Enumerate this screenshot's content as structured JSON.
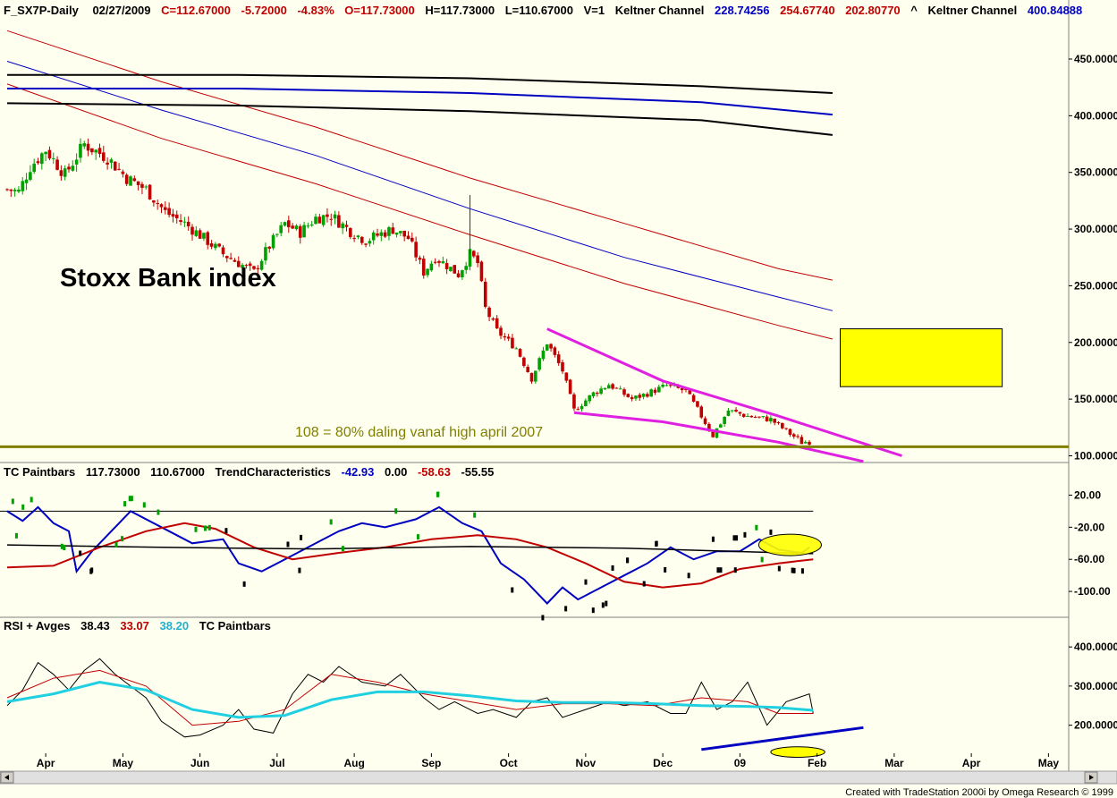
{
  "header": {
    "main": {
      "symbol": "F_SX7P-Daily",
      "date": "02/27/2009",
      "close": "C=112.67000",
      "change": "-5.72000",
      "change_pct": "-4.83%",
      "open": "O=117.73000",
      "high": "H=117.73000",
      "low": "L=110.67000",
      "volume": "V=1",
      "kc1_label": "Keltner Channel",
      "kc1_v1": "228.74256",
      "kc1_v2": "254.67740",
      "kc1_v3": "202.80770",
      "caret": "^",
      "kc2_label": "Keltner Channel",
      "kc2_v1": "400.84888"
    },
    "tc": {
      "label1": "TC Paintbars",
      "v1": "117.73000",
      "v2": "110.67000",
      "label2": "TrendCharacteristics",
      "t1": "-42.93",
      "t2": "0.00",
      "t3": "-58.63",
      "t4": "-55.55"
    },
    "rsi": {
      "label": "RSI + Avges",
      "v1": "38.43",
      "v2": "33.07",
      "v3": "38.20",
      "label2": "TC Paintbars"
    }
  },
  "annotations": {
    "title": "Stoxx Bank index",
    "support_note": "108 = 80% daling vanaf high april 2007"
  },
  "footer": "Created with TradeStation 2000i by Omega Research © 1999",
  "colors": {
    "background": "#fffff0",
    "up_candle": "#00a000",
    "down_candle": "#c00000",
    "keltner_red": "#c00000",
    "keltner_blue": "#0000c0",
    "keltner_black": "#000000",
    "wedge": "#e020e0",
    "support_line": "#808000",
    "highlight": "#ffff00",
    "trend_blue": "#0000c0",
    "trend_red": "#c00000",
    "rsi_cyan": "#20d0e0",
    "rsi_red": "#c00000"
  },
  "chart_data": [
    {
      "type": "candlestick",
      "name": "price",
      "x_ticks": [
        "Apr",
        "May",
        "Jun",
        "Jul",
        "Aug",
        "Sep",
        "Oct",
        "Nov",
        "Dec",
        "09",
        "Feb",
        "Mar",
        "Apr",
        "May"
      ],
      "y_ticks": [
        "450.0000",
        "400.0000",
        "350.0000",
        "300.0000",
        "250.0000",
        "200.0000",
        "150.0000",
        "100.0000"
      ],
      "ylim": [
        98,
        480
      ],
      "x_months": [
        0,
        13.8
      ],
      "close_path": [
        [
          0,
          335
        ],
        [
          0.15,
          333
        ],
        [
          0.3,
          355
        ],
        [
          0.5,
          370
        ],
        [
          0.75,
          348
        ],
        [
          1.0,
          375
        ],
        [
          1.12,
          370
        ],
        [
          1.3,
          363
        ],
        [
          1.55,
          345
        ],
        [
          1.8,
          335
        ],
        [
          2.05,
          315
        ],
        [
          2.3,
          305
        ],
        [
          2.55,
          292
        ],
        [
          2.8,
          278
        ],
        [
          3.05,
          268
        ],
        [
          3.2,
          262
        ],
        [
          3.35,
          280
        ],
        [
          3.6,
          305
        ],
        [
          3.8,
          297
        ],
        [
          4.0,
          310
        ],
        [
          4.2,
          312
        ],
        [
          4.45,
          298
        ],
        [
          4.65,
          290
        ],
        [
          4.85,
          296
        ],
        [
          5.0,
          300
        ],
        [
          5.2,
          292
        ],
        [
          5.4,
          262
        ],
        [
          5.55,
          275
        ],
        [
          5.7,
          268
        ],
        [
          5.85,
          260
        ],
        [
          6.0,
          278
        ],
        [
          6.1,
          270
        ],
        [
          6.2,
          230
        ],
        [
          6.35,
          210
        ],
        [
          6.6,
          195
        ],
        [
          6.8,
          168
        ],
        [
          7.0,
          200
        ],
        [
          7.2,
          175
        ],
        [
          7.35,
          140
        ],
        [
          7.6,
          155
        ],
        [
          7.8,
          163
        ],
        [
          8.1,
          150
        ],
        [
          8.3,
          155
        ],
        [
          8.55,
          162
        ],
        [
          8.8,
          157
        ],
        [
          9.0,
          135
        ],
        [
          9.15,
          118
        ],
        [
          9.35,
          140
        ],
        [
          9.6,
          135
        ],
        [
          9.9,
          132
        ],
        [
          10.1,
          122
        ],
        [
          10.3,
          112
        ],
        [
          10.42,
          113
        ]
      ],
      "spikes": [
        [
          6.0,
          330
        ]
      ],
      "keltner_channel_1": {
        "upper": [
          [
            0,
            475
          ],
          [
            2,
            430
          ],
          [
            4,
            390
          ],
          [
            6,
            345
          ],
          [
            8,
            305
          ],
          [
            10,
            265
          ],
          [
            10.7,
            255
          ]
        ],
        "middle": [
          [
            0,
            448
          ],
          [
            2,
            405
          ],
          [
            4,
            365
          ],
          [
            6,
            318
          ],
          [
            8,
            275
          ],
          [
            10,
            240
          ],
          [
            10.7,
            228
          ]
        ],
        "lower": [
          [
            0,
            428
          ],
          [
            2,
            380
          ],
          [
            4,
            340
          ],
          [
            6,
            295
          ],
          [
            8,
            252
          ],
          [
            10,
            215
          ],
          [
            10.7,
            203
          ]
        ]
      },
      "keltner_channel_2": {
        "upper": [
          [
            0,
            436
          ],
          [
            3,
            436
          ],
          [
            6,
            433
          ],
          [
            9,
            426
          ],
          [
            10.7,
            420
          ]
        ],
        "middle": [
          [
            0,
            424
          ],
          [
            3,
            424
          ],
          [
            6,
            420
          ],
          [
            9,
            412
          ],
          [
            10.7,
            401
          ]
        ],
        "lower": [
          [
            0,
            411
          ],
          [
            3,
            409
          ],
          [
            6,
            404
          ],
          [
            9,
            396
          ],
          [
            10.7,
            383
          ]
        ]
      },
      "wedge_upper": [
        [
          7.0,
          212
        ],
        [
          8.5,
          166
        ],
        [
          10.0,
          135
        ],
        [
          11.6,
          100
        ]
      ],
      "wedge_lower": [
        [
          7.35,
          138
        ],
        [
          8.5,
          130
        ],
        [
          10.0,
          112
        ],
        [
          11.1,
          95
        ]
      ],
      "support_level": 108,
      "highlight_box": {
        "x": [
          10.8,
          12.9
        ],
        "y": [
          161,
          212
        ]
      }
    },
    {
      "type": "line",
      "name": "trend_characteristics",
      "y_ticks": [
        "20.00",
        "-20.00",
        "-60.00",
        "-100.00"
      ],
      "ylim": [
        -130,
        35
      ],
      "reference_lines": [
        0,
        -42
      ],
      "series": [
        {
          "name": "trend",
          "color": "#0000c0",
          "values": [
            [
              0,
              0
            ],
            [
              0.2,
              -12
            ],
            [
              0.4,
              5
            ],
            [
              0.6,
              -15
            ],
            [
              0.8,
              -25
            ],
            [
              0.9,
              -75
            ],
            [
              1.1,
              -50
            ],
            [
              1.3,
              -30
            ],
            [
              1.6,
              0
            ],
            [
              2.0,
              -20
            ],
            [
              2.4,
              -40
            ],
            [
              2.8,
              -35
            ],
            [
              3.0,
              -65
            ],
            [
              3.3,
              -75
            ],
            [
              3.5,
              -65
            ],
            [
              3.8,
              -50
            ],
            [
              4.1,
              -35
            ],
            [
              4.3,
              -25
            ],
            [
              4.6,
              -15
            ],
            [
              4.9,
              -20
            ],
            [
              5.3,
              -10
            ],
            [
              5.6,
              5
            ],
            [
              5.9,
              -15
            ],
            [
              6.15,
              -25
            ],
            [
              6.4,
              -65
            ],
            [
              6.7,
              -85
            ],
            [
              7.0,
              -115
            ],
            [
              7.2,
              -95
            ],
            [
              7.4,
              -110
            ],
            [
              7.7,
              -95
            ],
            [
              8.0,
              -80
            ],
            [
              8.3,
              -65
            ],
            [
              8.6,
              -45
            ],
            [
              8.9,
              -60
            ],
            [
              9.2,
              -50
            ],
            [
              9.5,
              -50
            ],
            [
              9.75,
              -35
            ],
            [
              10.0,
              -48
            ],
            [
              10.3,
              -52
            ],
            [
              10.4,
              -45
            ]
          ]
        },
        {
          "name": "average",
          "color": "#c00000",
          "values": [
            [
              0,
              -70
            ],
            [
              0.6,
              -68
            ],
            [
              1.2,
              -45
            ],
            [
              1.8,
              -25
            ],
            [
              2.3,
              -15
            ],
            [
              2.7,
              -22
            ],
            [
              3.2,
              -45
            ],
            [
              3.7,
              -60
            ],
            [
              4.3,
              -52
            ],
            [
              4.9,
              -45
            ],
            [
              5.5,
              -35
            ],
            [
              6.1,
              -30
            ],
            [
              6.6,
              -35
            ],
            [
              7.0,
              -45
            ],
            [
              7.5,
              -65
            ],
            [
              8.0,
              -88
            ],
            [
              8.5,
              -95
            ],
            [
              9.0,
              -90
            ],
            [
              9.5,
              -72
            ],
            [
              10.0,
              -65
            ],
            [
              10.45,
              -60
            ]
          ]
        },
        {
          "name": "zero_line",
          "color": "#000000",
          "values": [
            [
              0,
              -42
            ],
            [
              2,
              -45
            ],
            [
              4,
              -47
            ],
            [
              6,
              -44
            ],
            [
              8,
              -46
            ],
            [
              10.45,
              -53
            ]
          ]
        }
      ]
    },
    {
      "type": "line",
      "name": "rsi",
      "y_ticks": [
        "400.0000",
        "300.0000",
        "200.0000"
      ],
      "ylim": [
        110,
        430
      ],
      "series": [
        {
          "name": "rsi",
          "color": "#000000",
          "values": [
            [
              0,
              250
            ],
            [
              0.2,
              290
            ],
            [
              0.4,
              360
            ],
            [
              0.6,
              330
            ],
            [
              0.8,
              290
            ],
            [
              1.0,
              340
            ],
            [
              1.2,
              370
            ],
            [
              1.4,
              330
            ],
            [
              1.6,
              300
            ],
            [
              1.8,
              270
            ],
            [
              2.0,
              210
            ],
            [
              2.3,
              170
            ],
            [
              2.5,
              175
            ],
            [
              2.8,
              200
            ],
            [
              3.0,
              240
            ],
            [
              3.2,
              190
            ],
            [
              3.45,
              180
            ],
            [
              3.7,
              280
            ],
            [
              3.9,
              330
            ],
            [
              4.1,
              310
            ],
            [
              4.3,
              350
            ],
            [
              4.6,
              310
            ],
            [
              4.9,
              300
            ],
            [
              5.1,
              330
            ],
            [
              5.4,
              270
            ],
            [
              5.6,
              240
            ],
            [
              5.8,
              260
            ],
            [
              6.1,
              230
            ],
            [
              6.3,
              240
            ],
            [
              6.6,
              220
            ],
            [
              6.8,
              260
            ],
            [
              7.0,
              270
            ],
            [
              7.2,
              220
            ],
            [
              7.5,
              240
            ],
            [
              7.8,
              260
            ],
            [
              8.0,
              250
            ],
            [
              8.3,
              260
            ],
            [
              8.6,
              230
            ],
            [
              8.8,
              230
            ],
            [
              9.0,
              310
            ],
            [
              9.2,
              240
            ],
            [
              9.4,
              260
            ],
            [
              9.6,
              310
            ],
            [
              9.85,
              200
            ],
            [
              10.1,
              260
            ],
            [
              10.4,
              280
            ],
            [
              10.45,
              230
            ]
          ]
        },
        {
          "name": "avg_fast",
          "color": "#c00000",
          "values": [
            [
              0,
              270
            ],
            [
              0.6,
              320
            ],
            [
              1.2,
              340
            ],
            [
              1.8,
              300
            ],
            [
              2.4,
              200
            ],
            [
              3.0,
              210
            ],
            [
              3.6,
              240
            ],
            [
              4.2,
              330
            ],
            [
              4.8,
              310
            ],
            [
              5.4,
              280
            ],
            [
              6.0,
              260
            ],
            [
              6.6,
              240
            ],
            [
              7.2,
              255
            ],
            [
              7.8,
              255
            ],
            [
              8.4,
              250
            ],
            [
              9.0,
              270
            ],
            [
              9.6,
              260
            ],
            [
              10.0,
              230
            ],
            [
              10.45,
              230
            ]
          ]
        },
        {
          "name": "avg_slow",
          "color": "#20d0e0",
          "values": [
            [
              0,
              260
            ],
            [
              0.6,
              280
            ],
            [
              1.2,
              310
            ],
            [
              1.8,
              290
            ],
            [
              2.4,
              240
            ],
            [
              3.0,
              220
            ],
            [
              3.6,
              225
            ],
            [
              4.2,
              265
            ],
            [
              4.8,
              285
            ],
            [
              5.4,
              285
            ],
            [
              6.0,
              275
            ],
            [
              6.6,
              262
            ],
            [
              7.2,
              258
            ],
            [
              7.8,
              258
            ],
            [
              8.4,
              255
            ],
            [
              9.0,
              250
            ],
            [
              9.6,
              248
            ],
            [
              10.0,
              245
            ],
            [
              10.45,
              238
            ]
          ]
        },
        {
          "name": "trendline",
          "color": "#0000c0",
          "values": [
            [
              9.0,
              138
            ],
            [
              11.1,
              194
            ]
          ]
        }
      ],
      "highlight_ellipse": {
        "x": [
          9.9,
          10.6
        ],
        "y": [
          118,
          145
        ]
      }
    }
  ]
}
